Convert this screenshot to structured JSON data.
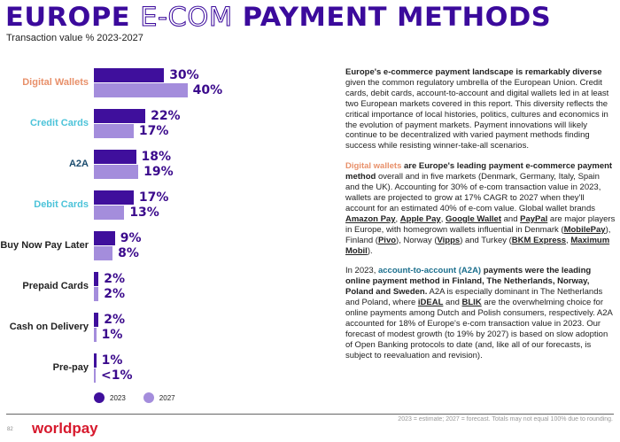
{
  "header": {
    "title_part1": "EUROPE ",
    "title_part2": "E-COM",
    "title_part3": " PAYMENT METHODS",
    "subtitle": "Transaction value % 2023-2027"
  },
  "colors": {
    "bar_2023": "#3f0f9c",
    "bar_2027": "#a48ddc",
    "value_label": "#3b0a8c",
    "digital_wallets": "#e8906a",
    "cards": "#4cc3d9",
    "a2a": "#1a4b6e",
    "default": "#222222"
  },
  "chart_data": {
    "type": "bar",
    "orientation": "horizontal",
    "title": "",
    "xlabel": "",
    "ylabel": "",
    "categories": [
      "Digital Wallets",
      "Credit Cards",
      "A2A",
      "Debit Cards",
      "Buy Now Pay Later",
      "Prepaid Cards",
      "Cash on Delivery",
      "Pre-pay"
    ],
    "category_colors": [
      "#e8906a",
      "#4cc3d9",
      "#1a4b6e",
      "#4cc3d9",
      "#222222",
      "#222222",
      "#222222",
      "#222222"
    ],
    "series": [
      {
        "name": "2023",
        "color": "#3f0f9c",
        "values": [
          30,
          22,
          18,
          17,
          9,
          2,
          2,
          1
        ],
        "labels": [
          "30%",
          "22%",
          "18%",
          "17%",
          "9%",
          "2%",
          "2%",
          "1%"
        ]
      },
      {
        "name": "2027",
        "color": "#a48ddc",
        "values": [
          40,
          17,
          19,
          13,
          8,
          2,
          1,
          0.5
        ],
        "labels": [
          "40%",
          "17%",
          "19%",
          "13%",
          "8%",
          "2%",
          "1%",
          "<1%"
        ]
      }
    ],
    "legend": "bottom-left",
    "grid": false
  },
  "text": {
    "paragraphs": [
      [
        {
          "t": "Europe's e-commerce payment landscape is remarkably diverse",
          "s": "b"
        },
        {
          "t": " given the common regulatory umbrella of the European Union. Credit cards, debit cards, account-to-account and digital wallets led in at least two European markets covered in this report. This diversity reflects the critical importance of local histories, politics, cultures and economics in the evolution of payment markets. Payment innovations will likely continue to be decentralized with varied payment methods finding success while resisting winner-take-all scenarios."
        }
      ],
      [
        {
          "t": "Digital wallets",
          "s": "or"
        },
        {
          "t": " are Europe's leading payment e-commerce payment method",
          "s": "b"
        },
        {
          "t": " overall and in five markets (Denmark, Germany, Italy, Spain and the UK). Accounting for 30% of e-com transaction value in 2023, wallets are projected to grow at 17% CAGR to 2027 when they'll account for an estimated 40% of e-com value. Global wallet brands "
        },
        {
          "t": "Amazon Pay",
          "s": "u"
        },
        {
          "t": ", "
        },
        {
          "t": "Apple Pay",
          "s": "u"
        },
        {
          "t": ", "
        },
        {
          "t": "Google Wallet",
          "s": "u"
        },
        {
          "t": " and "
        },
        {
          "t": "PayPal",
          "s": "u"
        },
        {
          "t": " are major players in Europe, with homegrown wallets influential in Denmark ("
        },
        {
          "t": "MobilePay",
          "s": "u"
        },
        {
          "t": "), Finland ("
        },
        {
          "t": "Pivo",
          "s": "u"
        },
        {
          "t": "), Norway ("
        },
        {
          "t": "Vipps",
          "s": "u"
        },
        {
          "t": ") and Turkey ("
        },
        {
          "t": "BKM Express",
          "s": "u"
        },
        {
          "t": ", "
        },
        {
          "t": "Maximum Mobil",
          "s": "u"
        },
        {
          "t": ")."
        }
      ],
      [
        {
          "t": "In 2023, "
        },
        {
          "t": "account-to-account (A2A)",
          "s": "tl"
        },
        {
          "t": " payments were the leading online payment method in Finland, The Netherlands, Norway, Poland and Sweden.",
          "s": "b"
        },
        {
          "t": " A2A is especially dominant in The Netherlands and Poland, where "
        },
        {
          "t": "iDEAL",
          "s": "u"
        },
        {
          "t": " and "
        },
        {
          "t": "BLIK",
          "s": "u"
        },
        {
          "t": " are the overwhelming choice for online payments among Dutch and Polish consumers, respectively. A2A accounted for 18% of Europe's e-com transaction value in 2023. Our forecast of modest growth (to 19% by 2027) is based on slow adoption of Open Banking protocols to date (and, like all of our forecasts, is subject to reevaluation and revision)."
        }
      ]
    ]
  },
  "footer": {
    "footnote": "2023 = estimate; 2027 = forecast. Totals may not equal 100% due to rounding.",
    "page_number": "82",
    "logo": "worldpay"
  }
}
